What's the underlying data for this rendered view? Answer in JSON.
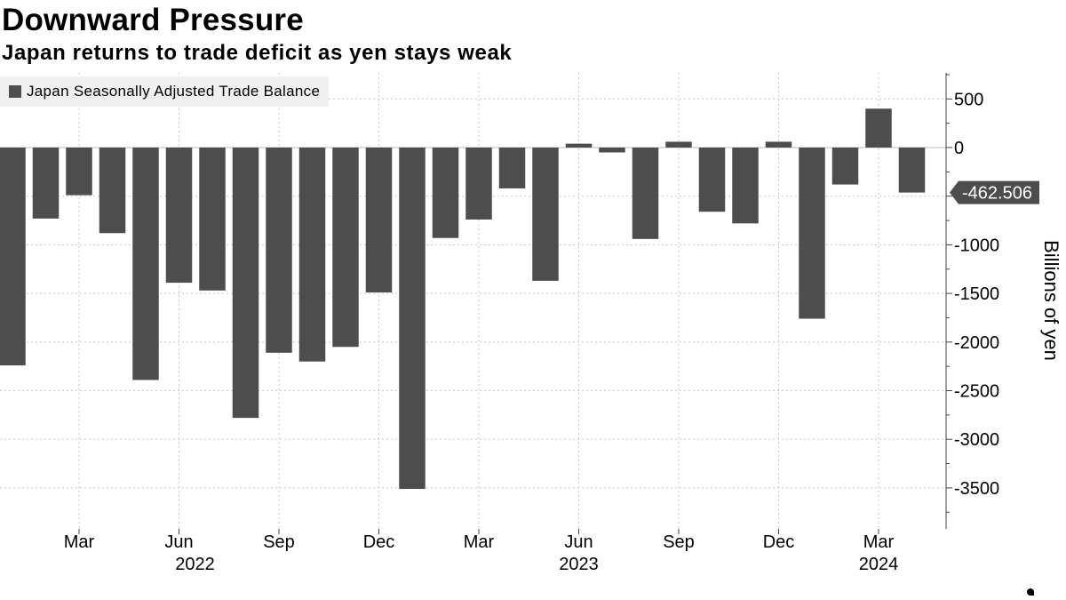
{
  "chart_data": {
    "type": "bar",
    "title": "Downward Pressure",
    "subtitle": "Japan returns to trade deficit as yen stays weak",
    "legend": "Japan Seasonally Adjusted Trade Balance",
    "ylabel": "Billions of yen",
    "ylim": [
      -3850,
      780
    ],
    "yticks": [
      500,
      0,
      -500,
      -1000,
      -1500,
      -2000,
      -2500,
      -3000,
      -3500
    ],
    "x_start": "2022-01",
    "categories": [
      "2022-01",
      "2022-02",
      "2022-03",
      "2022-04",
      "2022-05",
      "2022-06",
      "2022-07",
      "2022-08",
      "2022-09",
      "2022-10",
      "2022-11",
      "2022-12",
      "2023-01",
      "2023-02",
      "2023-03",
      "2023-04",
      "2023-05",
      "2023-06",
      "2023-07",
      "2023-08",
      "2023-09",
      "2023-10",
      "2023-11",
      "2023-12",
      "2024-01",
      "2024-02",
      "2024-03",
      "2024-04"
    ],
    "values": [
      -2240,
      -730,
      -490,
      -880,
      -2390,
      -1390,
      -1470,
      -2780,
      -2110,
      -2200,
      -2050,
      -1490,
      -3510,
      -930,
      -740,
      -420,
      -1370,
      40,
      -50,
      -940,
      60,
      -660,
      -780,
      60,
      -1760,
      -380,
      400,
      -462.506
    ],
    "xtick_labels": [
      {
        "month": "2022-03",
        "label": "Mar"
      },
      {
        "month": "2022-06",
        "label": "Jun"
      },
      {
        "month": "2022-09",
        "label": "Sep"
      },
      {
        "month": "2022-12",
        "label": "Dec"
      },
      {
        "month": "2023-03",
        "label": "Mar"
      },
      {
        "month": "2023-06",
        "label": "Jun"
      },
      {
        "month": "2023-09",
        "label": "Sep"
      },
      {
        "month": "2023-12",
        "label": "Dec"
      },
      {
        "month": "2024-03",
        "label": "Mar"
      }
    ],
    "year_labels": [
      {
        "month": "2022-06",
        "label": "2022"
      },
      {
        "month": "2023-06",
        "label": "2023"
      },
      {
        "month": "2024-03",
        "label": "2024"
      }
    ],
    "last_value_label": "-462.506",
    "grid": true,
    "legend_position": "top-left",
    "bar_color": "#4d4d4d"
  }
}
